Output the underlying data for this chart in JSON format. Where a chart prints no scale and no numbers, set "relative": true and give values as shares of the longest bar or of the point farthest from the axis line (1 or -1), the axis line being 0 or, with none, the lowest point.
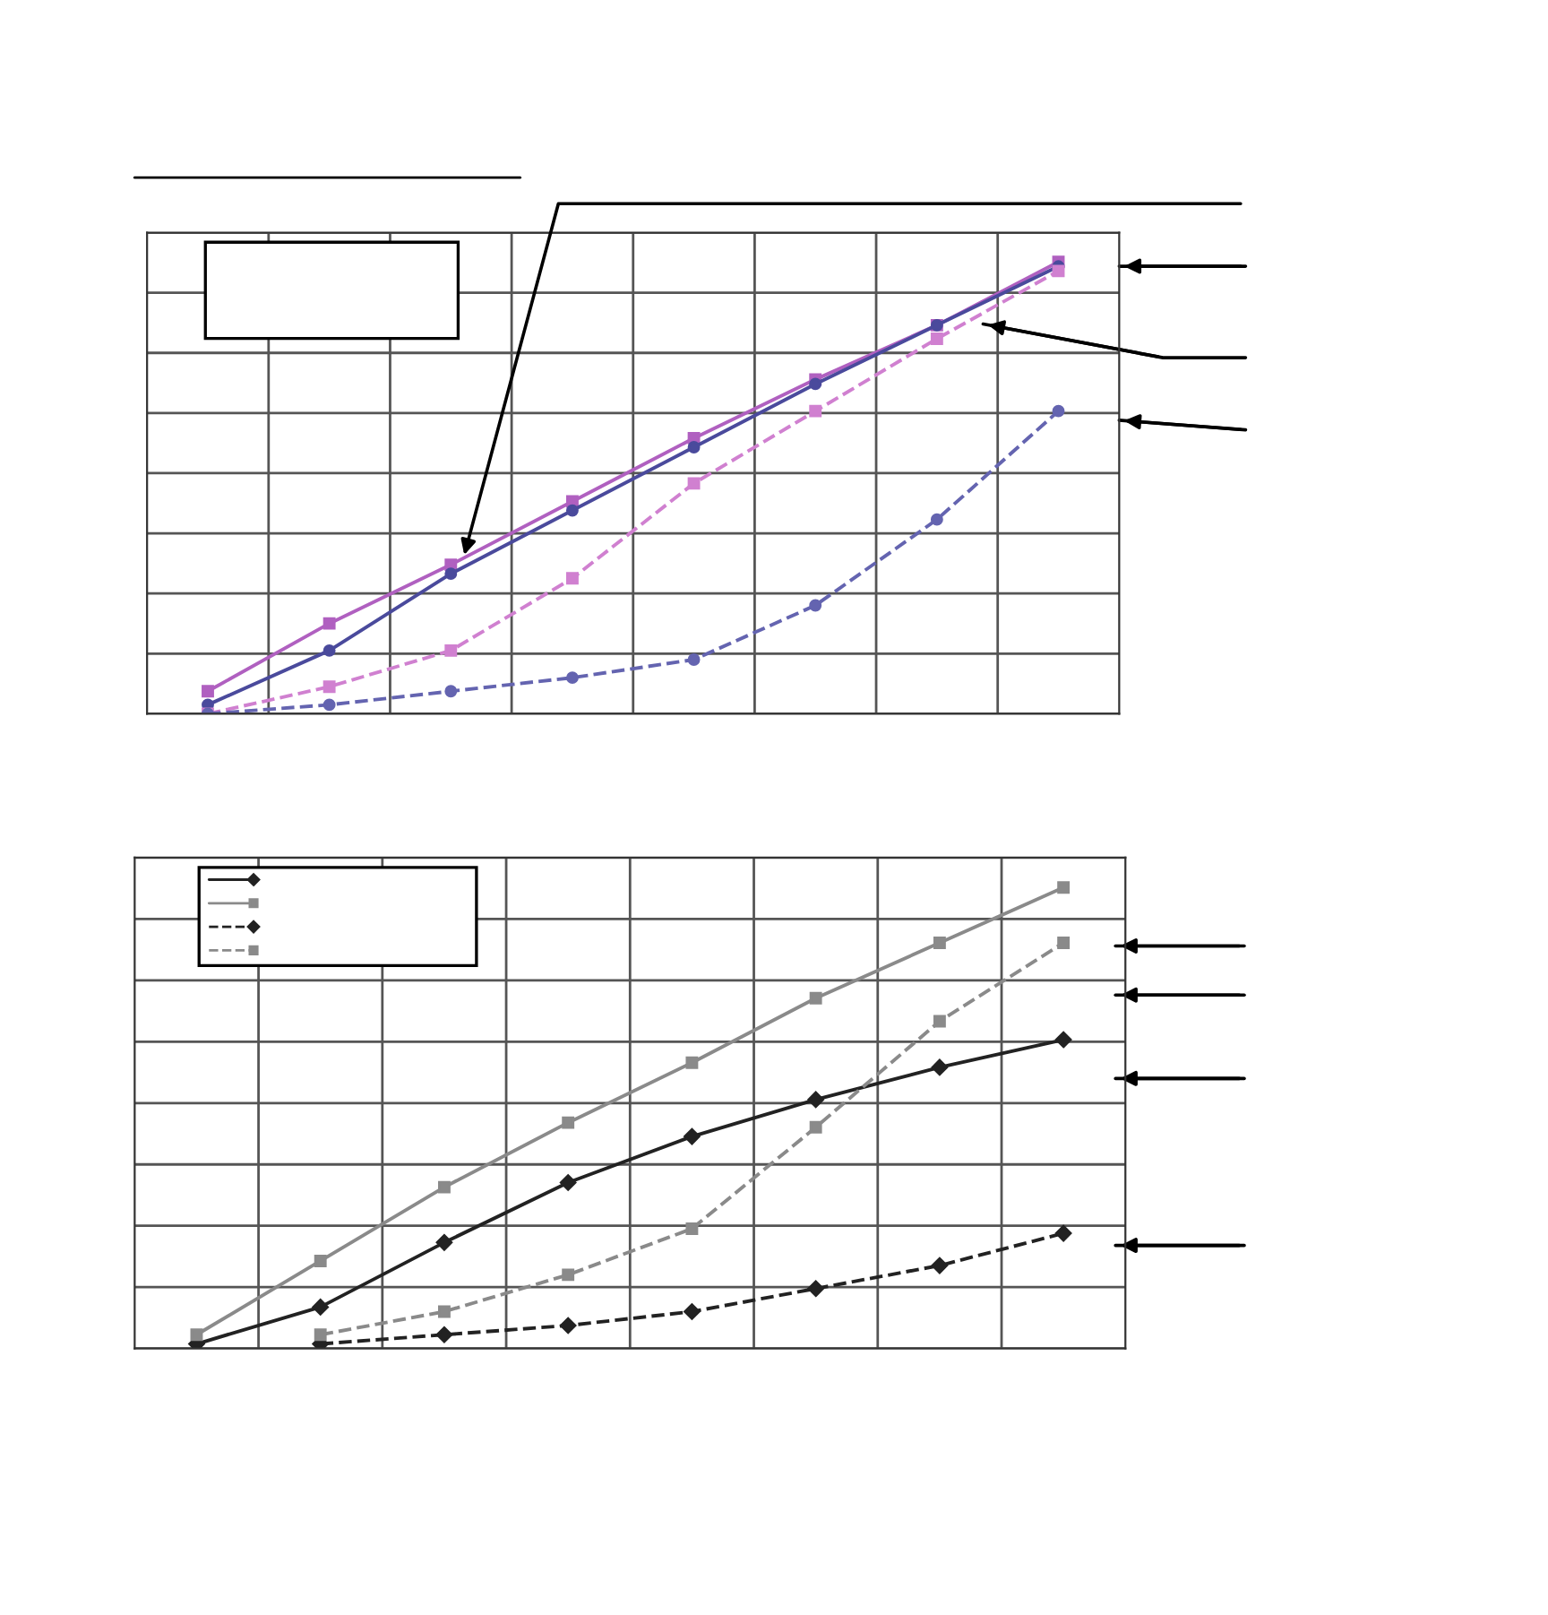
{
  "chart_data": [
    {
      "type": "line",
      "relative": true,
      "grid": true,
      "categories": [
        null,
        null,
        null,
        null,
        null,
        null,
        null,
        null
      ],
      "tick_labels": false,
      "series": [
        {
          "color": "#b060c0",
          "marker": "square",
          "line_style": "solid",
          "values": [
            0.05,
            0.2,
            0.33,
            0.47,
            0.61,
            0.74,
            0.86,
            1.0
          ]
        },
        {
          "color": "#4a4a9c",
          "marker": "circle",
          "line_style": "solid",
          "values": [
            0.02,
            0.14,
            0.31,
            0.45,
            0.59,
            0.73,
            0.86,
            0.99
          ]
        },
        {
          "color": "#d080d0",
          "marker": "square",
          "line_style": "dashed",
          "values": [
            0.0,
            0.06,
            0.14,
            0.3,
            0.51,
            0.67,
            0.83,
            0.98
          ]
        },
        {
          "color": "#6464b0",
          "marker": "circle",
          "line_style": "dashed",
          "values": [
            0.0,
            0.02,
            0.05,
            0.08,
            0.12,
            0.24,
            0.43,
            0.67
          ]
        }
      ]
    },
    {
      "type": "line",
      "relative": true,
      "grid": true,
      "categories": [
        null,
        null,
        null,
        null,
        null,
        null,
        null,
        null
      ],
      "tick_labels": false,
      "series": [
        {
          "color": "#222222",
          "marker": "diamond",
          "line_style": "solid",
          "values": [
            0.01,
            0.09,
            0.23,
            0.36,
            0.46,
            0.54,
            0.61,
            0.67
          ]
        },
        {
          "color": "#8a8a8a",
          "marker": "square",
          "line_style": "solid",
          "values": [
            0.03,
            0.19,
            0.35,
            0.49,
            0.62,
            0.76,
            0.88,
            1.0
          ]
        },
        {
          "color": "#222222",
          "marker": "diamond",
          "line_style": "dashed",
          "values": [
            null,
            0.01,
            0.03,
            0.05,
            0.08,
            0.13,
            0.18,
            0.25
          ]
        },
        {
          "color": "#8a8a8a",
          "marker": "square",
          "line_style": "dashed",
          "values": [
            null,
            0.03,
            0.08,
            0.16,
            0.26,
            0.48,
            0.71,
            0.88
          ]
        }
      ]
    }
  ]
}
